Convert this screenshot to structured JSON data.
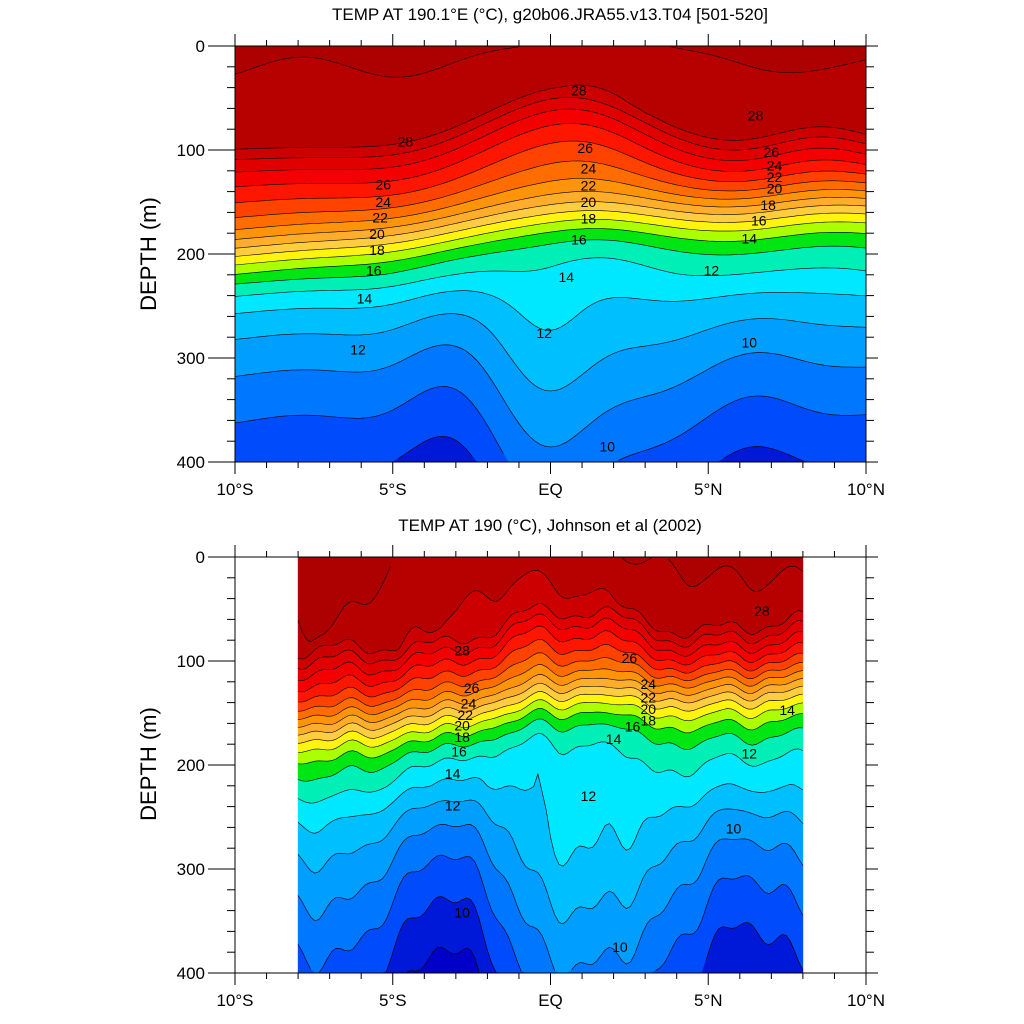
{
  "chart_data": [
    {
      "type": "contour",
      "title": "TEMP AT 190.1°E (°C), g20b06.JRA55.v13.T04 [501-520]",
      "ylabel": "DEPTH (m)",
      "xlabel": "",
      "x_ticks": [
        "10°S",
        "5°S",
        "EQ",
        "5°N",
        "10°N"
      ],
      "x_tick_values": [
        -10,
        -5,
        0,
        5,
        10
      ],
      "xlim": [
        -10,
        10
      ],
      "y_ticks": [
        "0",
        "100",
        "200",
        "300",
        "400"
      ],
      "y_tick_values": [
        0,
        100,
        200,
        300,
        400
      ],
      "ylim": [
        0,
        400
      ],
      "y_inverted": true,
      "data_lat_range": [
        -10,
        10
      ],
      "contour_interval": 1,
      "contour_labels": [
        {
          "label": "28",
          "lat": 0.9,
          "depth": 43
        },
        {
          "label": "28",
          "lat": 6.5,
          "depth": 67
        },
        {
          "label": "28",
          "lat": -4.6,
          "depth": 92
        },
        {
          "label": "26",
          "lat": 1.1,
          "depth": 98
        },
        {
          "label": "26",
          "lat": 7.0,
          "depth": 102
        },
        {
          "label": "26",
          "lat": -5.3,
          "depth": 133
        },
        {
          "label": "24",
          "lat": 1.2,
          "depth": 118
        },
        {
          "label": "24",
          "lat": 7.1,
          "depth": 115
        },
        {
          "label": "24",
          "lat": -5.3,
          "depth": 150
        },
        {
          "label": "22",
          "lat": 1.2,
          "depth": 134
        },
        {
          "label": "22",
          "lat": 7.1,
          "depth": 126
        },
        {
          "label": "22",
          "lat": -5.4,
          "depth": 165
        },
        {
          "label": "20",
          "lat": 1.2,
          "depth": 150
        },
        {
          "label": "20",
          "lat": 7.1,
          "depth": 137
        },
        {
          "label": "20",
          "lat": -5.5,
          "depth": 181
        },
        {
          "label": "18",
          "lat": 1.2,
          "depth": 166
        },
        {
          "label": "18",
          "lat": 6.9,
          "depth": 153
        },
        {
          "label": "18",
          "lat": -5.5,
          "depth": 196
        },
        {
          "label": "16",
          "lat": 0.9,
          "depth": 186
        },
        {
          "label": "16",
          "lat": 6.6,
          "depth": 168
        },
        {
          "label": "16",
          "lat": -5.6,
          "depth": 216
        },
        {
          "label": "14",
          "lat": 0.5,
          "depth": 222
        },
        {
          "label": "14",
          "lat": 6.3,
          "depth": 185
        },
        {
          "label": "14",
          "lat": -5.9,
          "depth": 243
        },
        {
          "label": "12",
          "lat": -0.2,
          "depth": 276
        },
        {
          "label": "12",
          "lat": 5.1,
          "depth": 216
        },
        {
          "label": "12",
          "lat": -6.1,
          "depth": 292
        },
        {
          "label": "10",
          "lat": 1.8,
          "depth": 385
        },
        {
          "label": "10",
          "lat": 6.3,
          "depth": 285
        }
      ]
    },
    {
      "type": "contour",
      "title": "TEMP AT 190 (°C), Johnson et al (2002)",
      "ylabel": "DEPTH (m)",
      "xlabel": "",
      "x_ticks": [
        "10°S",
        "5°S",
        "EQ",
        "5°N",
        "10°N"
      ],
      "x_tick_values": [
        -10,
        -5,
        0,
        5,
        10
      ],
      "xlim": [
        -10,
        10
      ],
      "y_ticks": [
        "0",
        "100",
        "200",
        "300",
        "400"
      ],
      "y_tick_values": [
        0,
        100,
        200,
        300,
        400
      ],
      "ylim": [
        0,
        400
      ],
      "y_inverted": true,
      "data_lat_range": [
        -8,
        8
      ],
      "contour_interval": 1,
      "contour_labels": [
        {
          "label": "28",
          "lat": 6.7,
          "depth": 52
        },
        {
          "label": "28",
          "lat": -2.8,
          "depth": 90
        },
        {
          "label": "26",
          "lat": 2.5,
          "depth": 97
        },
        {
          "label": "26",
          "lat": -2.5,
          "depth": 126
        },
        {
          "label": "24",
          "lat": -2.6,
          "depth": 141
        },
        {
          "label": "24",
          "lat": 3.1,
          "depth": 122
        },
        {
          "label": "22",
          "lat": -2.7,
          "depth": 152
        },
        {
          "label": "22",
          "lat": 3.1,
          "depth": 135
        },
        {
          "label": "20",
          "lat": -2.8,
          "depth": 162
        },
        {
          "label": "20",
          "lat": 3.1,
          "depth": 146
        },
        {
          "label": "18",
          "lat": -2.8,
          "depth": 173
        },
        {
          "label": "18",
          "lat": 3.1,
          "depth": 157
        },
        {
          "label": "16",
          "lat": -2.9,
          "depth": 187
        },
        {
          "label": "16",
          "lat": 2.6,
          "depth": 163
        },
        {
          "label": "14",
          "lat": -3.1,
          "depth": 208
        },
        {
          "label": "14",
          "lat": 2.0,
          "depth": 175
        },
        {
          "label": "14",
          "lat": 7.5,
          "depth": 147
        },
        {
          "label": "12",
          "lat": -3.1,
          "depth": 239
        },
        {
          "label": "12",
          "lat": 1.2,
          "depth": 230
        },
        {
          "label": "12",
          "lat": 6.3,
          "depth": 189
        },
        {
          "label": "10",
          "lat": -2.8,
          "depth": 342
        },
        {
          "label": "10",
          "lat": 2.2,
          "depth": 375
        },
        {
          "label": "10",
          "lat": 5.8,
          "depth": 261
        }
      ]
    }
  ]
}
